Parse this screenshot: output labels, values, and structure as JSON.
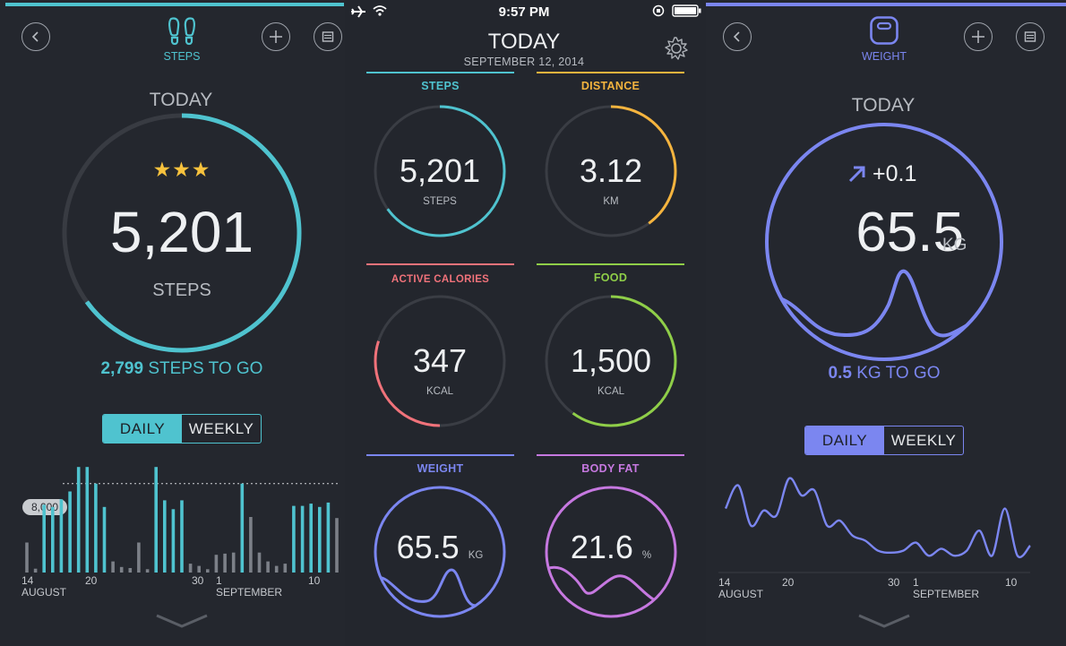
{
  "status_bar": {
    "time": "9:57 PM"
  },
  "colors": {
    "steps": "#4fc3cf",
    "distance": "#f5b43e",
    "calories": "#f0727a",
    "food": "#8fce48",
    "weight": "#7b86f0",
    "bodyfat": "#c678e0",
    "track": "#3a3d44",
    "bg": "#23262d"
  },
  "steps_panel": {
    "title": "STEPS",
    "today_label": "TODAY",
    "value": "5,201",
    "unit": "STEPS",
    "progress": 0.65,
    "stars": 3,
    "to_go_value": "2,799",
    "to_go_label": "STEPS TO GO",
    "toggle": {
      "daily": "DAILY",
      "weekly": "WEEKLY",
      "active": "daily"
    },
    "goal_label": "8,000",
    "axis": {
      "labels": [
        "14",
        "20",
        "30",
        "1",
        "10"
      ],
      "months": [
        "AUGUST",
        "SEPTEMBER"
      ]
    },
    "chart_data": {
      "type": "bar",
      "goal": 8000,
      "ymax": 10000,
      "values": [
        2700,
        350,
        6100,
        5900,
        6600,
        7300,
        9500,
        9500,
        8000,
        5900,
        1000,
        500,
        400,
        2700,
        300,
        9500,
        6500,
        5700,
        6500,
        800,
        600,
        300,
        1600,
        1700,
        1800,
        8000,
        5000,
        1800,
        1000,
        600,
        800,
        6000,
        6000,
        6200,
        5900,
        6300,
        4900
      ]
    }
  },
  "dashboard": {
    "title": "TODAY",
    "date": "SEPTEMBER 12, 2014",
    "tiles": [
      {
        "label": "STEPS",
        "value": "5,201",
        "unit": "STEPS",
        "progress": 0.65
      },
      {
        "label": "DISTANCE",
        "value": "3.12",
        "unit": "KM",
        "progress": 0.4
      },
      {
        "label": "ACTIVE CALORIES",
        "value": "347",
        "unit": "KCAL",
        "progress": 0.3
      },
      {
        "label": "FOOD",
        "value": "1,500",
        "unit": "KCAL",
        "progress": 0.6
      },
      {
        "label": "WEIGHT",
        "value": "65.5",
        "unit": "KG"
      },
      {
        "label": "BODY FAT",
        "value": "21.6",
        "unit": "%"
      }
    ]
  },
  "weight_panel": {
    "title": "WEIGHT",
    "today_label": "TODAY",
    "change": "+0.1",
    "value": "65.5",
    "unit": "KG",
    "to_go_value": "0.5",
    "to_go_label": "KG TO GO",
    "toggle": {
      "daily": "DAILY",
      "weekly": "WEEKLY",
      "active": "daily"
    },
    "axis": {
      "labels": [
        "14",
        "20",
        "30",
        "1",
        "10"
      ],
      "months": [
        "AUGUST",
        "SEPTEMBER"
      ]
    },
    "chart_data": {
      "type": "line",
      "values": [
        0.62,
        0.85,
        0.45,
        0.6,
        0.55,
        0.92,
        0.75,
        0.8,
        0.45,
        0.5,
        0.35,
        0.3,
        0.2,
        0.18,
        0.2,
        0.28,
        0.15,
        0.22,
        0.15,
        0.2,
        0.4,
        0.15,
        0.62,
        0.15,
        0.25
      ]
    }
  }
}
